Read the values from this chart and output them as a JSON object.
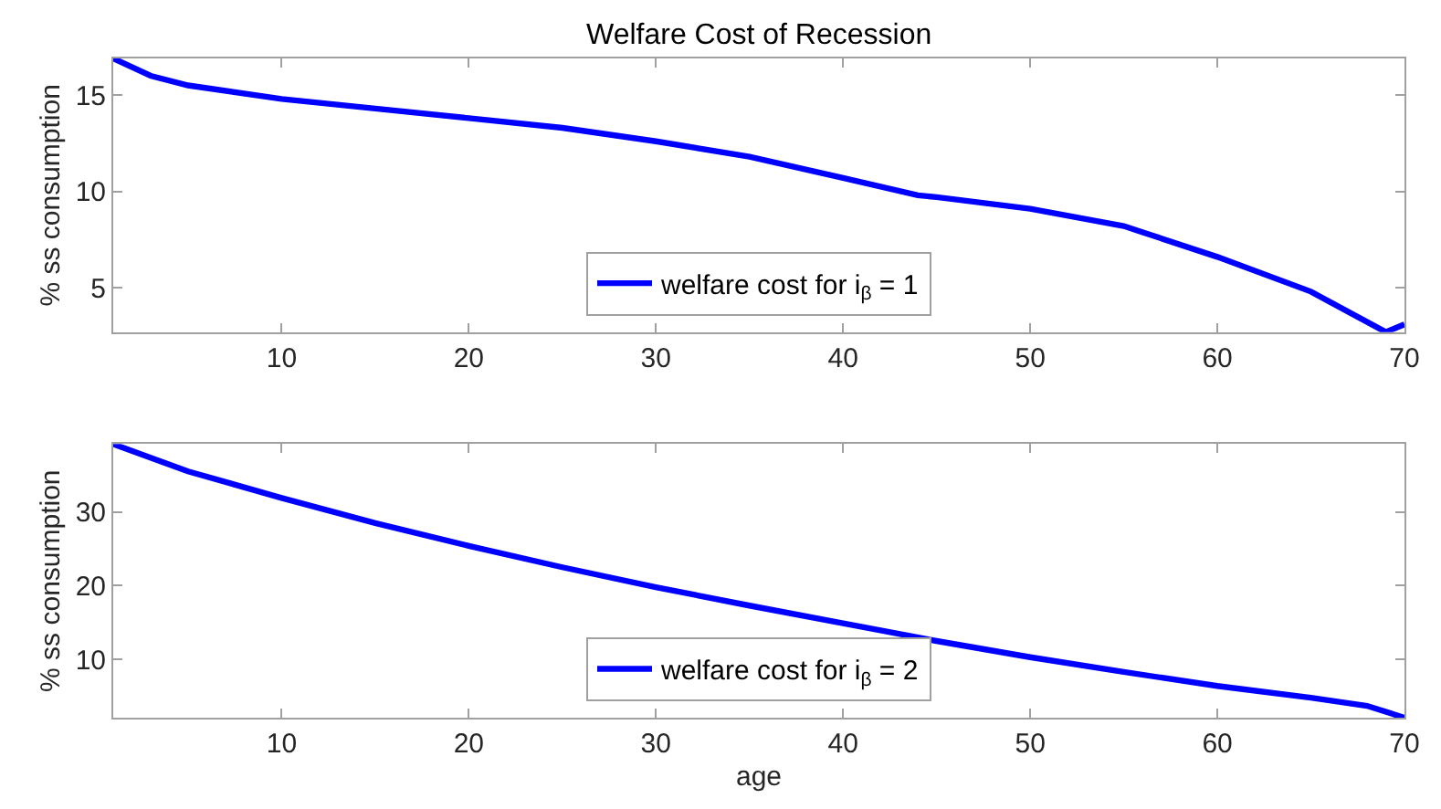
{
  "chart_data": [
    {
      "type": "line",
      "title": "Welfare Cost of Recession",
      "ylabel": "% ss consumption",
      "xlim": [
        1,
        70
      ],
      "xticks": [
        10,
        20,
        30,
        40,
        50,
        60,
        70
      ],
      "ylim": [
        2.7,
        16.9
      ],
      "yticks": [
        5,
        10,
        15
      ],
      "legend": "bottom",
      "line_style": "solid",
      "marker": "none",
      "series": [
        {
          "name": "welfare cost for i$_{β}$ = 1",
          "color": "#0000ff",
          "x": [
            1,
            3,
            5,
            10,
            15,
            20,
            25,
            30,
            35,
            40,
            44,
            45,
            50,
            55,
            60,
            65,
            69,
            70
          ],
          "values": [
            16.9,
            16.0,
            15.5,
            14.8,
            14.3,
            13.8,
            13.3,
            12.6,
            11.8,
            10.7,
            9.8,
            9.7,
            9.1,
            8.2,
            6.6,
            4.8,
            2.7,
            3.1
          ]
        }
      ]
    },
    {
      "type": "line",
      "xlabel": "age",
      "ylabel": "% ss consumption",
      "xlim": [
        1,
        70
      ],
      "xticks": [
        10,
        20,
        30,
        40,
        50,
        60,
        70
      ],
      "ylim": [
        2.1,
        39.2
      ],
      "yticks": [
        10,
        20,
        30
      ],
      "legend": "bottom",
      "line_style": "solid",
      "marker": "none",
      "series": [
        {
          "name": "welfare cost for i$_{β}$ = 2",
          "color": "#0000ff",
          "x": [
            1,
            5,
            10,
            15,
            20,
            25,
            30,
            35,
            40,
            45,
            50,
            55,
            60,
            65,
            68,
            70
          ],
          "values": [
            39.2,
            35.5,
            31.9,
            28.5,
            25.4,
            22.5,
            19.8,
            17.3,
            14.9,
            12.5,
            10.3,
            8.3,
            6.4,
            4.8,
            3.7,
            2.1
          ]
        }
      ]
    }
  ]
}
